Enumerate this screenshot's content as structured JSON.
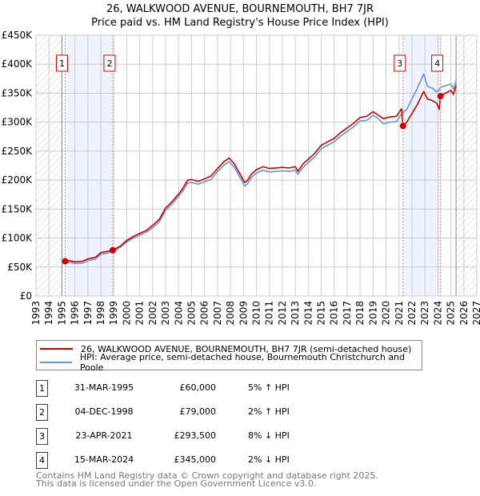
{
  "title": "26, WALKWOOD AVENUE, BOURNEMOUTH, BH7 7JR",
  "subtitle": "Price paid vs. HM Land Registry's House Price Index (HPI)",
  "chart_data": {
    "type": "line",
    "title": "26, WALKWOOD AVENUE, BOURNEMOUTH, BH7 7JR",
    "subtitle": "Price paid vs. HM Land Registry's House Price Index (HPI)",
    "xlim": [
      1993,
      2027
    ],
    "ylim": [
      0,
      450000
    ],
    "x_ticks": [
      "1993",
      "1994",
      "1995",
      "1996",
      "1997",
      "1998",
      "1999",
      "2000",
      "2001",
      "2002",
      "2003",
      "2004",
      "2005",
      "2006",
      "2007",
      "2008",
      "2009",
      "2010",
      "2011",
      "2012",
      "2013",
      "2014",
      "2015",
      "2016",
      "2017",
      "2018",
      "2019",
      "2020",
      "2021",
      "2022",
      "2023",
      "2024",
      "2025",
      "2026",
      "2027"
    ],
    "y_ticks": [
      {
        "v": 0,
        "label": "£0"
      },
      {
        "v": 50000,
        "label": "£50K"
      },
      {
        "v": 100000,
        "label": "£100K"
      },
      {
        "v": 150000,
        "label": "£150K"
      },
      {
        "v": 200000,
        "label": "£200K"
      },
      {
        "v": 250000,
        "label": "£250K"
      },
      {
        "v": 300000,
        "label": "£300K"
      },
      {
        "v": 350000,
        "label": "£350K"
      },
      {
        "v": 400000,
        "label": "£400K"
      },
      {
        "v": 450000,
        "label": "£450K"
      }
    ],
    "grid": true,
    "data_range": [
      1995.0,
      2025.4
    ],
    "series": [
      {
        "name": "26, WALKWOOD AVENUE, BOURNEMOUTH, BH7 7JR (semi-detached house)",
        "color": "#cc0000",
        "x": [
          1995.25,
          1995.6,
          1996,
          1996.6,
          1997,
          1997.6,
          1998,
          1998.5,
          1998.92,
          1999.5,
          2000,
          2000.6,
          2001,
          2001.5,
          2002,
          2002.5,
          2003,
          2003.5,
          2004,
          2004.3,
          2004.7,
          2005,
          2005.5,
          2006,
          2006.5,
          2007,
          2007.5,
          2007.9,
          2008.3,
          2008.7,
          2009.1,
          2009.3,
          2009.6,
          2010,
          2010.5,
          2011,
          2011.5,
          2012,
          2012.5,
          2013,
          2013.2,
          2013.6,
          2014,
          2014.5,
          2015,
          2015.5,
          2016,
          2016.5,
          2017,
          2017.5,
          2018,
          2018.5,
          2019,
          2019.4,
          2019.8,
          2020.3,
          2020.8,
          2021.2,
          2021.3,
          2021.6,
          2022,
          2022.4,
          2022.9,
          2023.2,
          2023.6,
          2023.9,
          2024.1,
          2024.2,
          2024.6,
          2025,
          2025.2,
          2025.4
        ],
        "y": [
          60000,
          61000,
          59000,
          60000,
          64000,
          67000,
          75000,
          77000,
          79000,
          86000,
          96000,
          104000,
          108000,
          113000,
          122000,
          132000,
          152000,
          163000,
          176000,
          185000,
          200000,
          201000,
          198000,
          202000,
          207000,
          220000,
          232000,
          238000,
          228000,
          212000,
          196000,
          199000,
          210000,
          218000,
          223000,
          220000,
          221000,
          222000,
          221000,
          223000,
          215000,
          228000,
          236000,
          246000,
          260000,
          266000,
          272000,
          282000,
          290000,
          298000,
          308000,
          310000,
          318000,
          312000,
          306000,
          309000,
          310000,
          323000,
          293500,
          300000,
          315000,
          330000,
          353000,
          340000,
          337000,
          333000,
          322000,
          345000,
          350000,
          355000,
          348000,
          363000
        ]
      },
      {
        "name": "HPI: Average price, semi-detached house, Bournemouth Christchurch and Poole",
        "color": "#6694d4",
        "x": [
          1995.25,
          1995.6,
          1996,
          1996.6,
          1997,
          1997.6,
          1998,
          1998.5,
          1998.92,
          1999.5,
          2000,
          2000.6,
          2001,
          2001.5,
          2002,
          2002.5,
          2003,
          2003.5,
          2004,
          2004.3,
          2004.7,
          2005,
          2005.5,
          2006,
          2006.5,
          2007,
          2007.5,
          2007.9,
          2008.3,
          2008.7,
          2009.1,
          2009.3,
          2009.6,
          2010,
          2010.5,
          2011,
          2011.5,
          2012,
          2012.5,
          2013,
          2013.2,
          2013.6,
          2014,
          2014.5,
          2015,
          2015.5,
          2016,
          2016.5,
          2017,
          2017.5,
          2018,
          2018.5,
          2019,
          2019.4,
          2019.8,
          2020.3,
          2020.8,
          2021.2,
          2021.3,
          2021.6,
          2022,
          2022.4,
          2022.9,
          2023.2,
          2023.6,
          2023.9,
          2024.1,
          2024.2,
          2024.6,
          2025,
          2025.2,
          2025.4
        ],
        "y": [
          57000,
          58000,
          56000,
          57000,
          61000,
          64000,
          72000,
          74000,
          77000,
          84000,
          93000,
          101000,
          105000,
          110000,
          118000,
          128000,
          148000,
          159000,
          172000,
          180000,
          195000,
          196000,
          193000,
          197000,
          201000,
          215000,
          226000,
          232000,
          222000,
          206000,
          190000,
          193000,
          204000,
          212000,
          217000,
          214000,
          215000,
          216000,
          215000,
          217000,
          210000,
          222000,
          230000,
          240000,
          254000,
          260000,
          266000,
          276000,
          284000,
          292000,
          302000,
          303000,
          312000,
          306000,
          297000,
          300000,
          301000,
          314000,
          316000,
          322000,
          340000,
          358000,
          383000,
          362000,
          358000,
          352000,
          356000,
          360000,
          363000,
          366000,
          357000,
          372000
        ]
      }
    ],
    "annotations": [
      {
        "id": "1",
        "x": 1995.25,
        "y": 60000
      },
      {
        "id": "2",
        "x": 1998.92,
        "y": 79000
      },
      {
        "id": "3",
        "x": 2021.31,
        "y": 293500
      },
      {
        "id": "4",
        "x": 2024.2,
        "y": 345000
      }
    ]
  },
  "legend": {
    "property": "26, WALKWOOD AVENUE, BOURNEMOUTH, BH7 7JR (semi-detached house)",
    "hpi": "HPI: Average price, semi-detached house, Bournemouth Christchurch and Poole"
  },
  "sales": [
    {
      "num": "1",
      "date": "31-MAR-1995",
      "price": "£60,000",
      "hpi": "5% ↑ HPI"
    },
    {
      "num": "2",
      "date": "04-DEC-1998",
      "price": "£79,000",
      "hpi": "2% ↑ HPI"
    },
    {
      "num": "3",
      "date": "23-APR-2021",
      "price": "£293,500",
      "hpi": "8% ↓ HPI"
    },
    {
      "num": "4",
      "date": "15-MAR-2024",
      "price": "£345,000",
      "hpi": "2% ↓ HPI"
    }
  ],
  "footer": {
    "line1": "Contains HM Land Registry data © Crown copyright and database right 2025.",
    "line2": "This data is licensed under the Open Government Licence v3.0."
  }
}
